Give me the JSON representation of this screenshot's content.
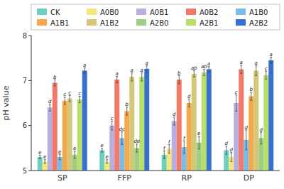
{
  "chart_data": {
    "type": "bar",
    "categories": [
      "SP",
      "FFP",
      "RP",
      "DP"
    ],
    "series": [
      {
        "name": "CK",
        "color": "#6ecfbf",
        "values": [
          5.3,
          5.45,
          5.35,
          5.45
        ],
        "errors": [
          0.04,
          0.04,
          0.09,
          0.09
        ],
        "labels": [
          "e",
          "e",
          "f",
          "d"
        ]
      },
      {
        "name": "A0B0",
        "color": "#f5e87a",
        "values": [
          5.2,
          5.2,
          5.48,
          5.3
        ],
        "errors": [
          0.04,
          0.04,
          0.1,
          0.1
        ],
        "labels": [
          "e",
          "e",
          "f",
          "d"
        ]
      },
      {
        "name": "A0B1",
        "color": "#b8aee0",
        "values": [
          6.4,
          6.0,
          6.1,
          6.5
        ],
        "errors": [
          0.08,
          0.1,
          0.09,
          0.18
        ],
        "labels": [
          "d",
          "c",
          "d",
          "c"
        ]
      },
      {
        "name": "A0B2",
        "color": "#f47868",
        "values": [
          6.95,
          7.02,
          7.02,
          7.25
        ],
        "errors": [
          0.07,
          0.07,
          0.09,
          0.09
        ],
        "labels": [
          "b",
          "a",
          "b",
          "a"
        ]
      },
      {
        "name": "A1B0",
        "color": "#78bce8",
        "values": [
          5.3,
          5.72,
          5.52,
          5.68
        ],
        "errors": [
          0.06,
          0.14,
          0.14,
          0.22
        ],
        "labels": [
          "e",
          "dc",
          "f",
          "d"
        ]
      },
      {
        "name": "A1B1",
        "color": "#f5a84a",
        "values": [
          6.55,
          6.32,
          6.5,
          6.65
        ],
        "errors": [
          0.08,
          0.09,
          0.09,
          0.09
        ],
        "labels": [
          "c",
          "b",
          "d",
          "b"
        ]
      },
      {
        "name": "A1B2",
        "color": "#d4c878",
        "values": [
          6.6,
          7.08,
          7.15,
          7.22
        ],
        "errors": [
          0.07,
          0.09,
          0.07,
          0.11
        ],
        "labels": [
          "c",
          "a",
          "ab",
          "a"
        ]
      },
      {
        "name": "A2B0",
        "color": "#9ece84",
        "values": [
          5.35,
          5.5,
          5.62,
          5.72
        ],
        "errors": [
          0.08,
          0.09,
          0.14,
          0.13
        ],
        "labels": [
          "e",
          "de",
          "e",
          "d"
        ]
      },
      {
        "name": "A2B1",
        "color": "#b8e068",
        "values": [
          6.58,
          7.08,
          7.18,
          7.12
        ],
        "errors": [
          0.07,
          0.09,
          0.07,
          0.09
        ],
        "labels": [
          "c",
          "a",
          "ab",
          "c"
        ]
      },
      {
        "name": "A2B2",
        "color": "#3870d0",
        "values": [
          7.22,
          7.26,
          7.25,
          7.45
        ],
        "errors": [
          0.06,
          0.07,
          0.06,
          0.07
        ],
        "labels": [
          "a",
          "a",
          "a",
          "a"
        ]
      }
    ],
    "ylabel": "pH value",
    "ylim": [
      5.0,
      8.0
    ],
    "yticks": [
      5,
      6,
      7,
      8
    ],
    "grid": false,
    "legend": "top"
  }
}
